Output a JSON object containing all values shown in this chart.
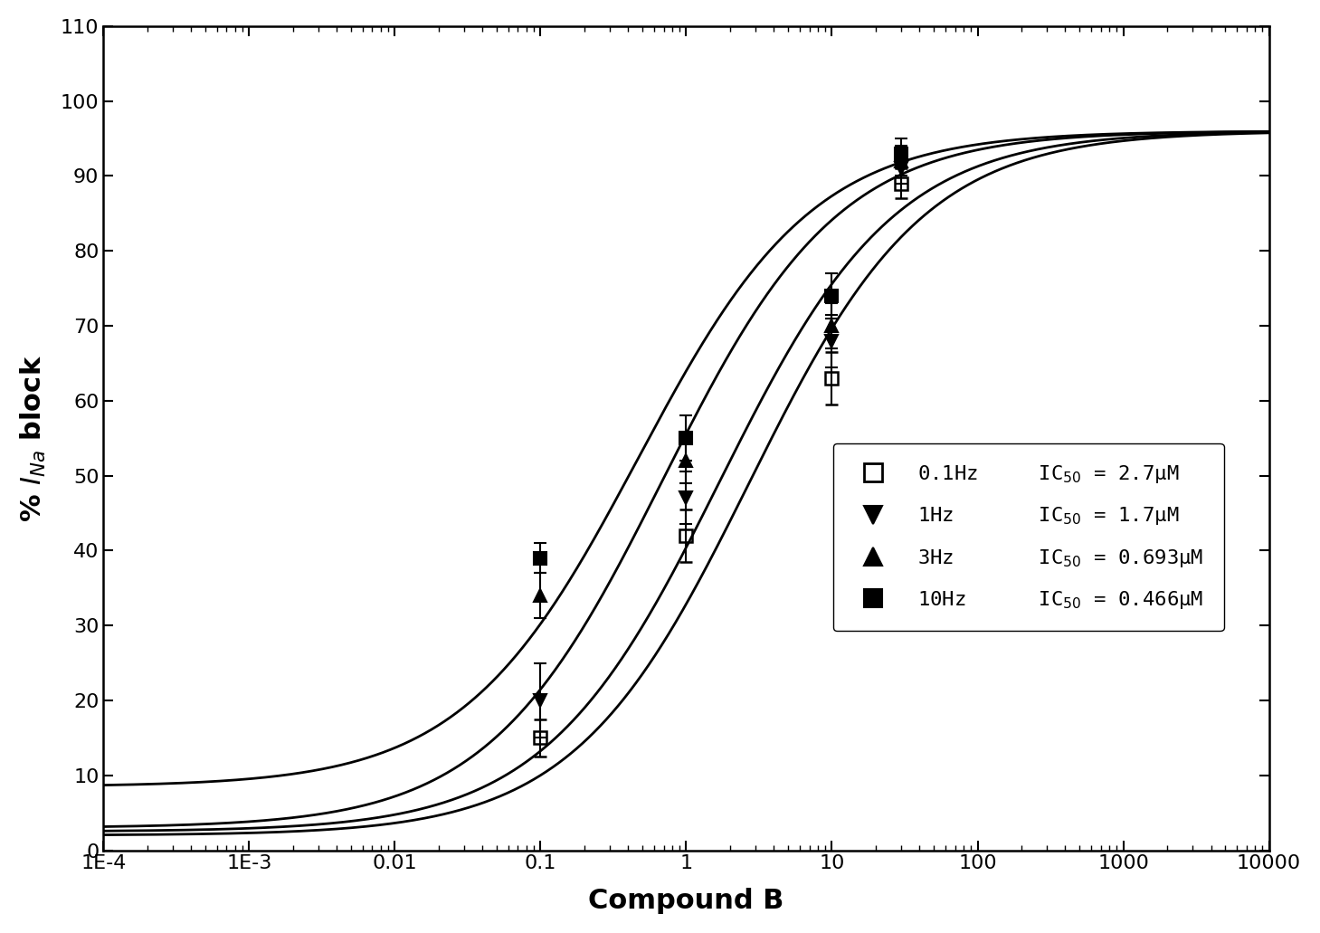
{
  "title": "",
  "xlabel": "Compound B",
  "ylabel": "% I_Na block",
  "xlim_log": [
    -4,
    4
  ],
  "ylim": [
    0,
    110
  ],
  "yticks": [
    0,
    10,
    20,
    30,
    40,
    50,
    60,
    70,
    80,
    90,
    100,
    110
  ],
  "xtick_labels": [
    "1E-4",
    "1E-3",
    "0.01",
    "0.1",
    "1",
    "10",
    "100",
    "1000",
    "10000"
  ],
  "xtick_values": [
    0.0001,
    0.001,
    0.01,
    0.1,
    1,
    10,
    100,
    1000,
    10000
  ],
  "series": [
    {
      "label": "0.1Hz",
      "ic50": 2.7,
      "hill": 0.72,
      "max_block": 96,
      "min_block": 2.0,
      "marker": "s",
      "fillstyle": "none",
      "data_x": [
        0.1,
        1,
        10,
        30
      ],
      "data_y": [
        15,
        42,
        63,
        89
      ],
      "data_yerr": [
        2.5,
        3.5,
        3.5,
        2.0
      ]
    },
    {
      "label": "1Hz",
      "ic50": 1.7,
      "hill": 0.72,
      "max_block": 96,
      "min_block": 2.5,
      "marker": "v",
      "fillstyle": "full",
      "data_x": [
        0.1,
        1,
        10,
        30
      ],
      "data_y": [
        20,
        47,
        68,
        91
      ],
      "data_yerr": [
        5.0,
        3.5,
        3.5,
        2.0
      ]
    },
    {
      "label": "3Hz",
      "ic50": 0.693,
      "hill": 0.72,
      "max_block": 96,
      "min_block": 3.0,
      "marker": "^",
      "fillstyle": "full",
      "data_x": [
        0.1,
        1,
        10,
        30
      ],
      "data_y": [
        34,
        52,
        70,
        92
      ],
      "data_yerr": [
        3.0,
        3.0,
        3.0,
        2.0
      ]
    },
    {
      "label": "10Hz",
      "ic50": 0.466,
      "hill": 0.72,
      "max_block": 96,
      "min_block": 8.5,
      "marker": "s",
      "fillstyle": "full",
      "data_x": [
        0.1,
        1,
        10,
        30
      ],
      "data_y": [
        39,
        55,
        74,
        93
      ],
      "data_yerr": [
        2.0,
        3.0,
        3.0,
        2.0
      ]
    }
  ],
  "legend_entries": [
    {
      "label_freq": "0.1Hz",
      "ic50_text": "IC$_{50}$ = 2.7μM",
      "marker": "s",
      "fillstyle": "none"
    },
    {
      "label_freq": "1Hz",
      "ic50_text": "IC$_{50}$ = 1.7μM",
      "marker": "v",
      "fillstyle": "full"
    },
    {
      "label_freq": "3Hz",
      "ic50_text": "IC$_{50}$ = 0.693μM",
      "marker": "^",
      "fillstyle": "full"
    },
    {
      "label_freq": "10Hz",
      "ic50_text": "IC$_{50}$ = 0.466μM",
      "marker": "s",
      "fillstyle": "full"
    }
  ],
  "background_color": "#ffffff",
  "line_color": "black",
  "marker_size": 10,
  "line_width": 2.0
}
